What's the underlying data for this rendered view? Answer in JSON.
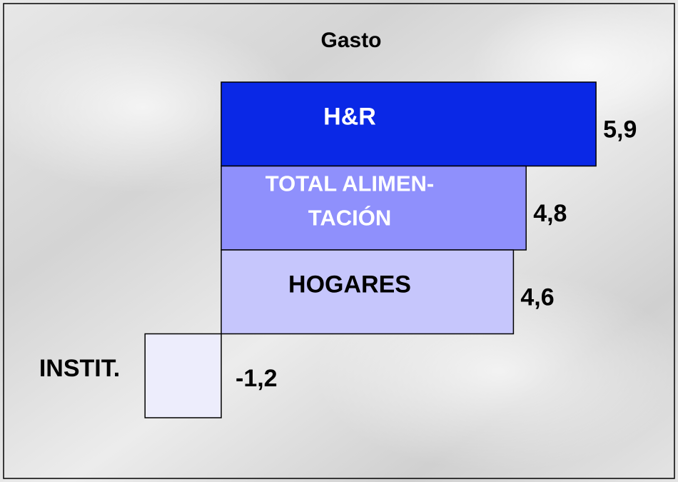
{
  "chart_data": {
    "type": "hbar",
    "title": "Gasto",
    "categories": [
      [
        "H&R"
      ],
      [
        "TOTAL ALIMEN-",
        "TACIÓN"
      ],
      [
        "HOGARES"
      ],
      [
        "INSTIT."
      ]
    ],
    "values": [
      5.9,
      4.8,
      4.6,
      -1.2
    ],
    "value_labels": [
      "5,9",
      "4,8",
      "4,6",
      "-1,2"
    ],
    "colors": [
      "#0a28e6",
      "#8f90fc",
      "#c6c6fc",
      "#ededfc"
    ]
  }
}
